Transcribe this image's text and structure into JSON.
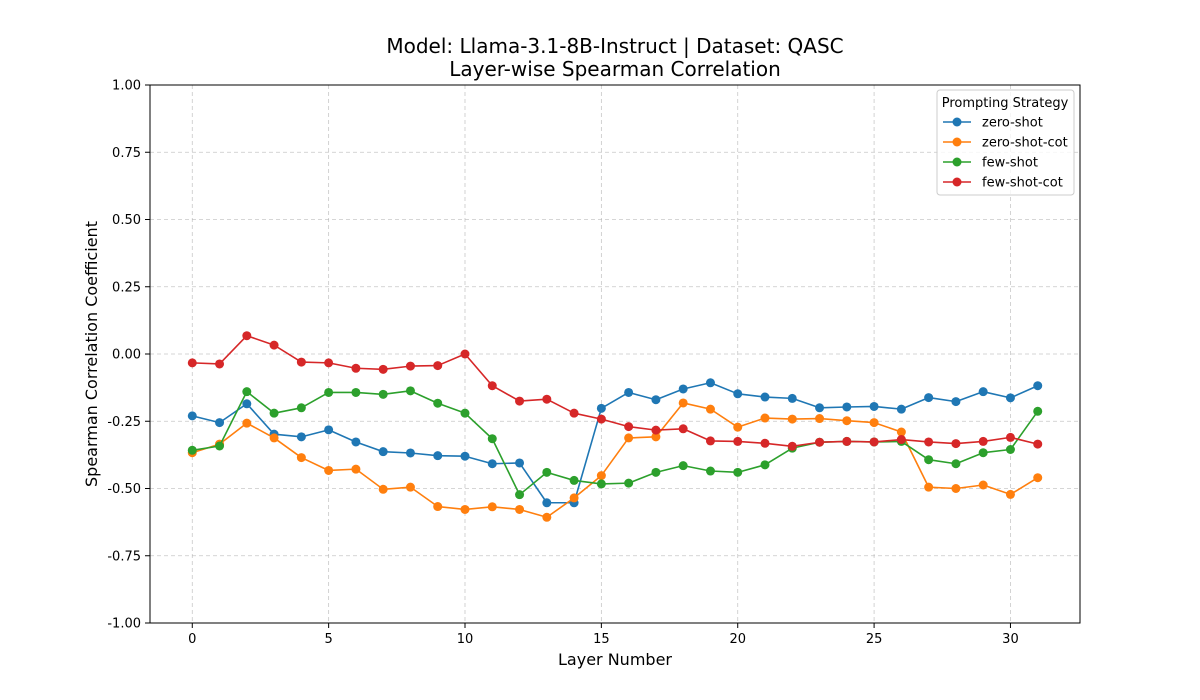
{
  "chart_data": {
    "type": "line",
    "title_line1": "Model: Llama-3.1-8B-Instruct | Dataset: QASC",
    "title_line2": "Layer-wise Spearman Correlation",
    "xlabel": "Layer Number",
    "ylabel": "Spearman Correlation Coefficient",
    "xlim": [
      -1.55,
      32.55
    ],
    "ylim": [
      -1.0,
      1.0
    ],
    "xticks": [
      0,
      5,
      10,
      15,
      20,
      25,
      30
    ],
    "yticks": [
      -1.0,
      -0.75,
      -0.5,
      -0.25,
      0.0,
      0.25,
      0.5,
      0.75,
      1.0
    ],
    "ytick_labels": [
      "-1.00",
      "-0.75",
      "-0.50",
      "-0.25",
      "0.00",
      "0.25",
      "0.50",
      "0.75",
      "1.00"
    ],
    "xtick_labels": [
      "0",
      "5",
      "10",
      "15",
      "20",
      "25",
      "30"
    ],
    "grid": true,
    "legend_title": "Prompting Strategy",
    "legend_position": "top-right",
    "x": [
      0,
      1,
      2,
      3,
      4,
      5,
      6,
      7,
      8,
      9,
      10,
      11,
      12,
      13,
      14,
      15,
      16,
      17,
      18,
      19,
      20,
      21,
      22,
      23,
      24,
      25,
      26,
      27,
      28,
      29,
      30,
      31
    ],
    "series": [
      {
        "name": "zero-shot",
        "color": "#1f77b4",
        "values": [
          -0.23,
          -0.255,
          -0.185,
          -0.298,
          -0.308,
          -0.282,
          -0.327,
          -0.363,
          -0.368,
          -0.378,
          -0.38,
          -0.408,
          -0.405,
          -0.553,
          -0.553,
          -0.202,
          -0.143,
          -0.17,
          -0.13,
          -0.107,
          -0.148,
          -0.16,
          -0.165,
          -0.2,
          -0.197,
          -0.195,
          -0.205,
          -0.162,
          -0.177,
          -0.14,
          -0.163,
          -0.118
        ]
      },
      {
        "name": "zero-shot-cot",
        "color": "#ff7f0e",
        "values": [
          -0.367,
          -0.335,
          -0.257,
          -0.312,
          -0.385,
          -0.433,
          -0.428,
          -0.503,
          -0.495,
          -0.567,
          -0.578,
          -0.568,
          -0.578,
          -0.607,
          -0.535,
          -0.452,
          -0.312,
          -0.308,
          -0.182,
          -0.205,
          -0.272,
          -0.238,
          -0.242,
          -0.24,
          -0.248,
          -0.255,
          -0.29,
          -0.495,
          -0.5,
          -0.487,
          -0.522,
          -0.46
        ]
      },
      {
        "name": "few-shot",
        "color": "#2ca02c",
        "values": [
          -0.358,
          -0.342,
          -0.14,
          -0.22,
          -0.2,
          -0.143,
          -0.143,
          -0.15,
          -0.137,
          -0.183,
          -0.22,
          -0.315,
          -0.523,
          -0.44,
          -0.47,
          -0.483,
          -0.48,
          -0.44,
          -0.415,
          -0.435,
          -0.44,
          -0.412,
          -0.35,
          -0.328,
          -0.325,
          -0.327,
          -0.325,
          -0.393,
          -0.408,
          -0.367,
          -0.355,
          -0.213
        ]
      },
      {
        "name": "few-shot-cot",
        "color": "#d62728",
        "values": [
          -0.033,
          -0.037,
          0.068,
          0.033,
          -0.03,
          -0.033,
          -0.053,
          -0.057,
          -0.045,
          -0.043,
          0.0,
          -0.118,
          -0.175,
          -0.168,
          -0.22,
          -0.242,
          -0.27,
          -0.283,
          -0.278,
          -0.323,
          -0.325,
          -0.332,
          -0.343,
          -0.328,
          -0.325,
          -0.327,
          -0.318,
          -0.327,
          -0.333,
          -0.325,
          -0.31,
          -0.335
        ]
      }
    ]
  }
}
